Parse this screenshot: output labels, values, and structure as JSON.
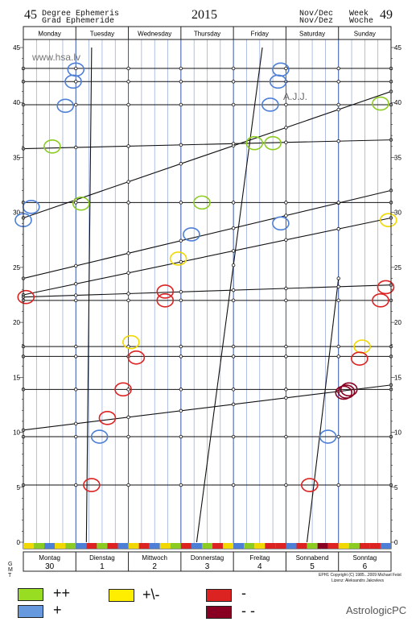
{
  "header": {
    "degree_left": "45",
    "title_line1": "Degree Ephemeris",
    "title_line2": "Grad  Ephemeride",
    "year": "2015",
    "month_line1": "Nov/Dec",
    "month_line2": "Nov/Dez",
    "week_line1": "Week",
    "week_line2": "Woche",
    "week_number": "49"
  },
  "watermark": "www.hsa.lv",
  "author": "A.J.J.",
  "brand": "AstrologicPC",
  "copyright_line1": "EPH1 Copyright (C) 1985...2009 Michael Feist",
  "copyright_line2": "Lizenz: Aleksandrs Jakovlevs",
  "side_note": "G M T",
  "legend": [
    {
      "label": "++",
      "color": "#99dd22"
    },
    {
      "label": "+",
      "color": "#6699dd"
    },
    {
      "label": "+\\-",
      "color": "#ffee00"
    },
    {
      "label": "-",
      "color": "#dd2222"
    },
    {
      "label": "- -",
      "color": "#880022"
    }
  ],
  "chart_data": {
    "type": "line",
    "title": "45 Degree Ephemeris 2015 Nov/Dec Week 49",
    "xlabel": "",
    "ylabel": "",
    "xlim": [
      0,
      7
    ],
    "ylim": [
      0,
      45
    ],
    "y_ticks": [
      0,
      5,
      10,
      15,
      20,
      25,
      30,
      35,
      40,
      45
    ],
    "days_top": [
      "Monday",
      "Tuesday",
      "Wednesday",
      "Thursday",
      "Friday",
      "Saturday",
      "Sunday"
    ],
    "days_bottom": [
      "Montag",
      "Dienstag",
      "Mittwoch",
      "Donnerstag",
      "Freitag",
      "Sonnabend",
      "Sonntag"
    ],
    "dates": [
      "30",
      "1",
      "2",
      "3",
      "4",
      "5",
      "6"
    ],
    "series": [
      {
        "name": "moon-1",
        "kind": "steep",
        "points": [
          [
            1.2,
            0
          ],
          [
            1.3,
            45
          ]
        ]
      },
      {
        "name": "moon-2",
        "kind": "steep",
        "points": [
          [
            3.3,
            0
          ],
          [
            4.55,
            45
          ]
        ]
      },
      {
        "name": "moon-3",
        "kind": "steep",
        "points": [
          [
            5.4,
            0
          ],
          [
            6.0,
            24
          ]
        ]
      },
      {
        "name": "line-a",
        "kind": "sloped",
        "points": [
          [
            0,
            29.5
          ],
          [
            7,
            41
          ]
        ]
      },
      {
        "name": "line-b",
        "kind": "sloped",
        "points": [
          [
            0,
            24
          ],
          [
            7,
            32
          ]
        ]
      },
      {
        "name": "line-c",
        "kind": "sloped",
        "points": [
          [
            0,
            22.5
          ],
          [
            7,
            29.5
          ]
        ]
      },
      {
        "name": "line-d",
        "kind": "sloped",
        "points": [
          [
            0,
            10.2
          ],
          [
            7,
            14.3
          ]
        ]
      },
      {
        "name": "line-e",
        "kind": "sloped",
        "points": [
          [
            0,
            22.3
          ],
          [
            7,
            23.4
          ]
        ]
      },
      {
        "name": "line-f",
        "kind": "sloped",
        "points": [
          [
            0,
            35.8
          ],
          [
            7,
            36.6
          ]
        ]
      },
      {
        "name": "flat-43",
        "kind": "flat",
        "y": 43.1
      },
      {
        "name": "flat-42",
        "kind": "flat",
        "y": 41.9
      },
      {
        "name": "flat-39.8",
        "kind": "flat",
        "y": 39.8
      },
      {
        "name": "flat-30.9",
        "kind": "flat",
        "y": 30.9
      },
      {
        "name": "flat-22",
        "kind": "flat",
        "y": 22.0
      },
      {
        "name": "flat-18",
        "kind": "flat",
        "y": 17.8
      },
      {
        "name": "flat-17",
        "kind": "flat",
        "y": 16.9
      },
      {
        "name": "flat-14",
        "kind": "flat",
        "y": 13.9
      },
      {
        "name": "flat-9.6",
        "kind": "flat",
        "y": 9.6
      },
      {
        "name": "flat-5.2",
        "kind": "flat",
        "y": 5.2
      }
    ],
    "aspect_markers": [
      {
        "x": 1.0,
        "y": 43.0,
        "color": "blue"
      },
      {
        "x": 0.95,
        "y": 41.9,
        "color": "blue"
      },
      {
        "x": 0.8,
        "y": 39.7,
        "color": "blue"
      },
      {
        "x": 0.55,
        "y": 36.0,
        "color": "green"
      },
      {
        "x": 0.15,
        "y": 30.5,
        "color": "blue"
      },
      {
        "x": 1.1,
        "y": 30.8,
        "color": "green"
      },
      {
        "x": 0.0,
        "y": 29.3,
        "color": "blue"
      },
      {
        "x": 0.05,
        "y": 22.3,
        "color": "red"
      },
      {
        "x": 2.05,
        "y": 18.2,
        "color": "yellow"
      },
      {
        "x": 2.15,
        "y": 16.8,
        "color": "red"
      },
      {
        "x": 1.9,
        "y": 13.9,
        "color": "red"
      },
      {
        "x": 1.6,
        "y": 11.3,
        "color": "red"
      },
      {
        "x": 1.45,
        "y": 9.6,
        "color": "blue"
      },
      {
        "x": 1.3,
        "y": 5.2,
        "color": "red"
      },
      {
        "x": 3.4,
        "y": 30.9,
        "color": "green"
      },
      {
        "x": 3.2,
        "y": 28.0,
        "color": "blue"
      },
      {
        "x": 2.95,
        "y": 25.8,
        "color": "yellow"
      },
      {
        "x": 2.7,
        "y": 22.8,
        "color": "red"
      },
      {
        "x": 2.7,
        "y": 22.0,
        "color": "red"
      },
      {
        "x": 4.9,
        "y": 43.0,
        "color": "blue"
      },
      {
        "x": 4.85,
        "y": 41.9,
        "color": "blue"
      },
      {
        "x": 4.7,
        "y": 39.8,
        "color": "blue"
      },
      {
        "x": 4.4,
        "y": 36.3,
        "color": "green"
      },
      {
        "x": 4.75,
        "y": 36.3,
        "color": "green"
      },
      {
        "x": 4.9,
        "y": 29.0,
        "color": "blue"
      },
      {
        "x": 6.8,
        "y": 39.9,
        "color": "green"
      },
      {
        "x": 6.95,
        "y": 29.3,
        "color": "yellow"
      },
      {
        "x": 6.9,
        "y": 23.2,
        "color": "red"
      },
      {
        "x": 6.8,
        "y": 22.0,
        "color": "red"
      },
      {
        "x": 6.45,
        "y": 17.8,
        "color": "yellow"
      },
      {
        "x": 6.4,
        "y": 16.7,
        "color": "red"
      },
      {
        "x": 6.2,
        "y": 13.9,
        "color": "darkred"
      },
      {
        "x": 6.15,
        "y": 13.7,
        "color": "darkred"
      },
      {
        "x": 6.1,
        "y": 13.6,
        "color": "darkred"
      },
      {
        "x": 5.8,
        "y": 9.6,
        "color": "blue"
      },
      {
        "x": 5.45,
        "y": 5.2,
        "color": "red"
      }
    ],
    "bottom_strip": [
      "yellow",
      "green",
      "blue",
      "yellow",
      "green",
      "blue",
      "red",
      "green",
      "red",
      "blue",
      "yellow",
      "red",
      "blue",
      "yellow",
      "green",
      "red",
      "blue",
      "green",
      "red",
      "yellow",
      "blue",
      "green",
      "yellow",
      "red",
      "red",
      "blue",
      "red",
      "green",
      "darkred",
      "red",
      "yellow",
      "green",
      "red",
      "red",
      "blue"
    ]
  }
}
